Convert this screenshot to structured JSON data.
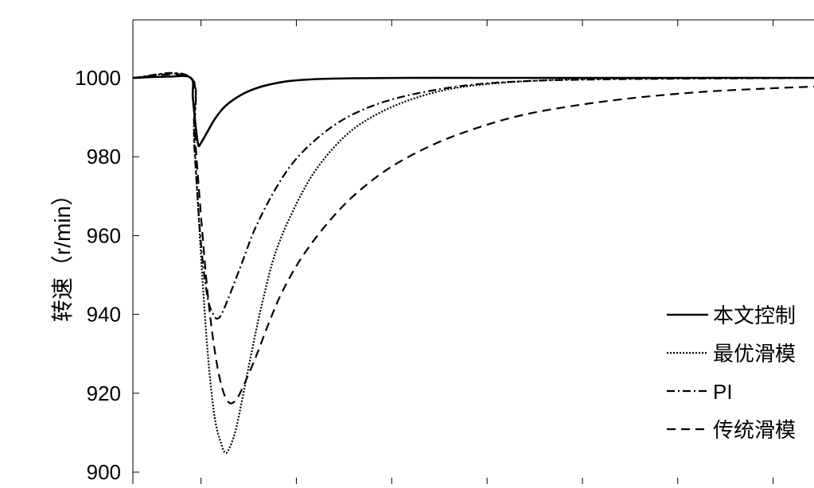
{
  "chart_data": {
    "type": "line",
    "xlabel": "",
    "ylabel": "转速（r/min）",
    "ylim": [
      900,
      1015
    ],
    "xlim": [
      0,
      1
    ],
    "yticks": [
      1000,
      980,
      960,
      940,
      920,
      900
    ],
    "xticks": [
      0.1,
      0.24,
      0.38,
      0.52,
      0.66,
      0.8,
      0.94
    ],
    "grid": false,
    "legend_position": "bottom-right",
    "series": [
      {
        "name": "本文控制",
        "style": "solid",
        "color": "#000000",
        "x": [
          0,
          0.05,
          0.085,
          0.088,
          0.092,
          0.096,
          0.1,
          0.11,
          0.12,
          0.13,
          0.14,
          0.16,
          0.18,
          0.2,
          0.23,
          0.27,
          0.32,
          0.4,
          0.5,
          0.7,
          1.0
        ],
        "y": [
          1000,
          1000.3,
          1000,
          995,
          988,
          983,
          983.5,
          986.5,
          989.5,
          991.8,
          993.5,
          995.8,
          997.3,
          998.3,
          999.2,
          999.7,
          999.9,
          1000,
          1000,
          1000,
          1000
        ]
      },
      {
        "name": "最优滑模",
        "style": "dotted",
        "color": "#000000",
        "x": [
          0,
          0.085,
          0.09,
          0.1,
          0.11,
          0.12,
          0.13,
          0.135,
          0.14,
          0.15,
          0.16,
          0.175,
          0.19,
          0.21,
          0.24,
          0.27,
          0.31,
          0.35,
          0.4,
          0.46,
          0.53,
          0.62,
          0.72,
          0.85,
          1.0
        ],
        "y": [
          1000,
          1000,
          985,
          955,
          930,
          914,
          907,
          905,
          905.5,
          910,
          918,
          931,
          943,
          956,
          968,
          977,
          985,
          990,
          994,
          997,
          998.6,
          999.5,
          999.8,
          1000,
          1000
        ]
      },
      {
        "name": "PI",
        "style": "dashdot",
        "color": "#000000",
        "x": [
          0,
          0.085,
          0.09,
          0.1,
          0.11,
          0.12,
          0.125,
          0.13,
          0.14,
          0.16,
          0.18,
          0.21,
          0.24,
          0.28,
          0.32,
          0.37,
          0.43,
          0.5,
          0.58,
          0.68,
          0.8,
          0.92,
          1.0
        ],
        "y": [
          1000,
          1000,
          983,
          958,
          944,
          939.5,
          939,
          940,
          944,
          953,
          962,
          972,
          979.5,
          986,
          990.5,
          994,
          996.5,
          998.3,
          999.2,
          999.6,
          999.8,
          999.9,
          1000
        ]
      },
      {
        "name": "传统滑模",
        "style": "dashed",
        "color": "#000000",
        "x": [
          0,
          0.085,
          0.09,
          0.1,
          0.11,
          0.12,
          0.13,
          0.14,
          0.15,
          0.16,
          0.18,
          0.2,
          0.22,
          0.25,
          0.29,
          0.33,
          0.38,
          0.44,
          0.5,
          0.57,
          0.65,
          0.74,
          0.84,
          0.93,
          1.0
        ],
        "y": [
          1000,
          1000,
          988,
          965,
          945,
          931,
          922,
          917.8,
          918,
          921,
          929,
          938,
          946,
          955,
          964,
          971,
          977.5,
          983,
          987,
          990.5,
          993,
          995,
          996.5,
          997.3,
          997.8
        ]
      }
    ]
  }
}
